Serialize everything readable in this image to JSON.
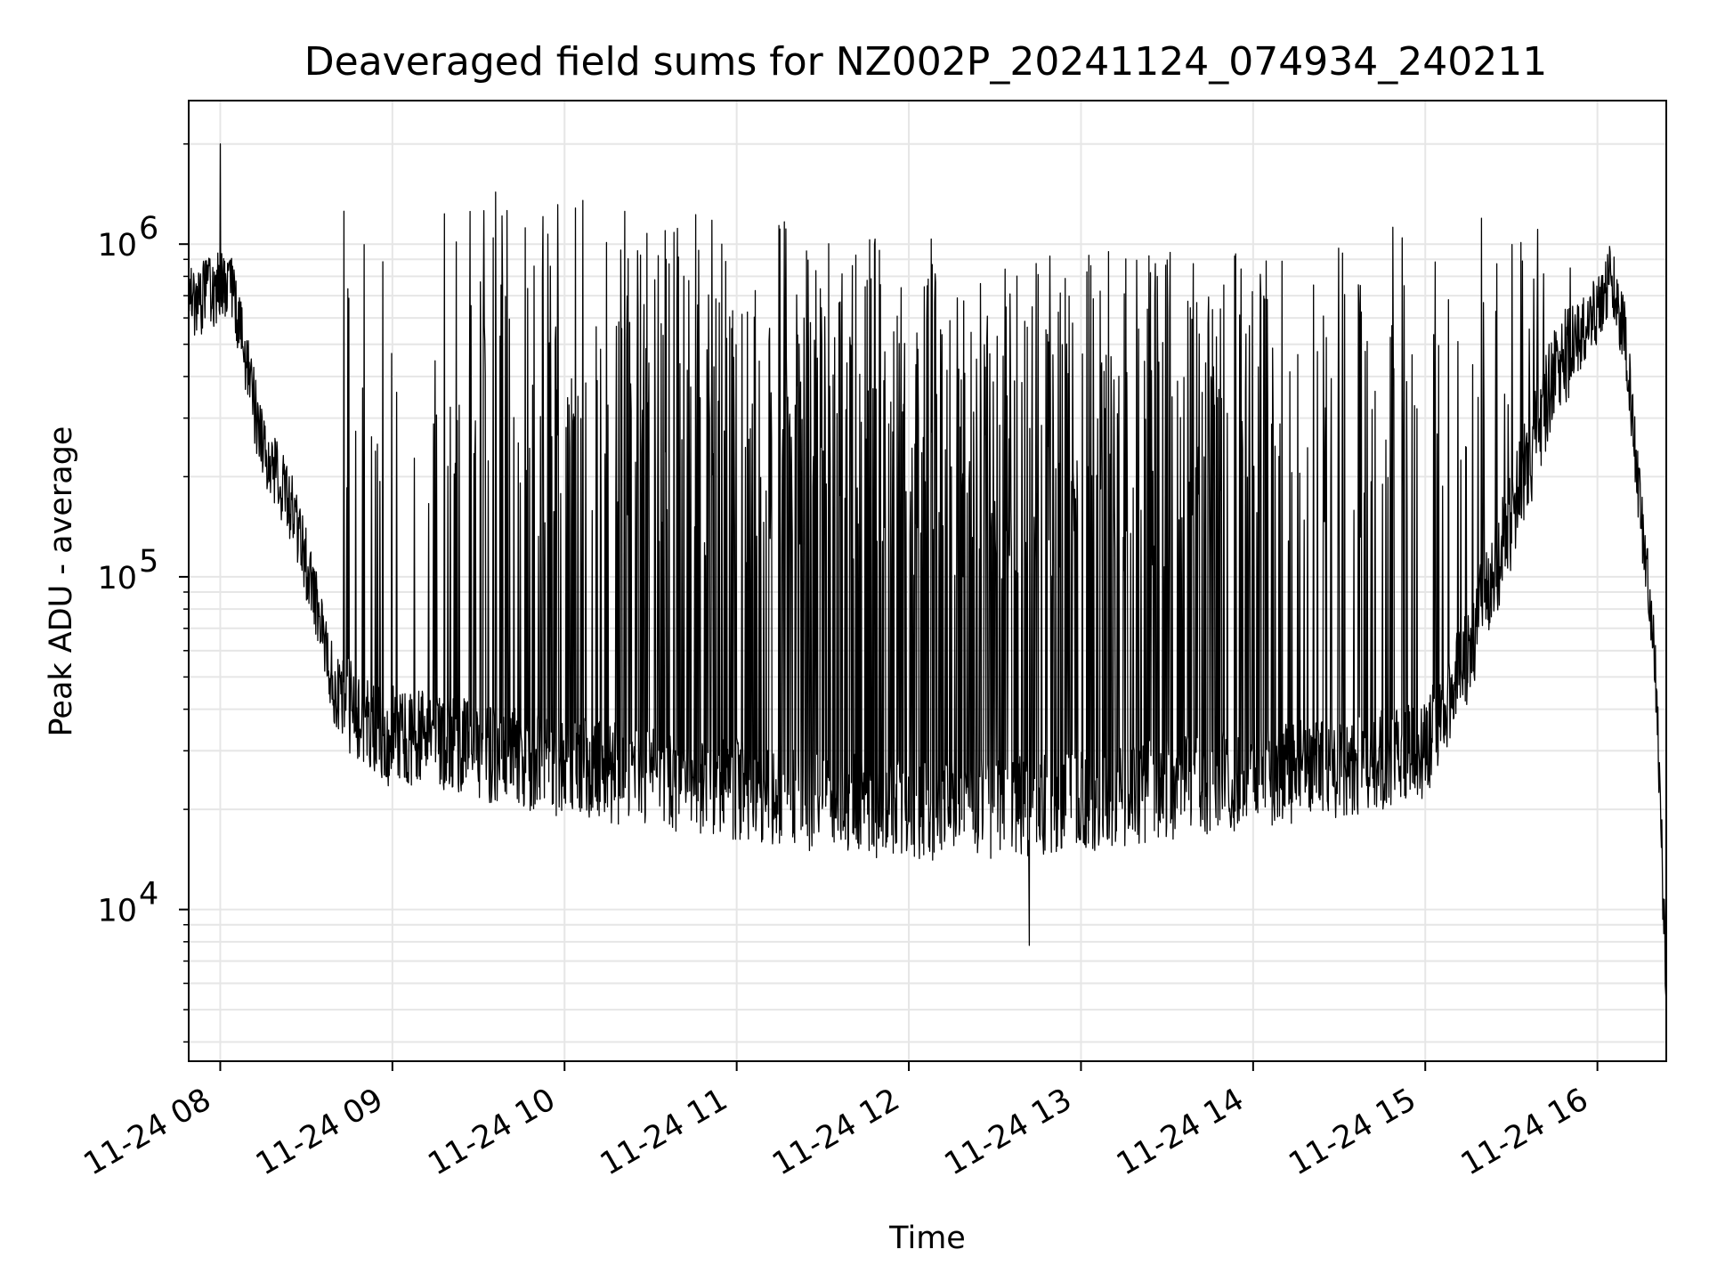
{
  "chart_data": {
    "type": "line",
    "title": "Deaveraged field sums for NZ002P_20241124_074934_240211",
    "xlabel": "Time",
    "ylabel": "Peak ADU - average",
    "yscale": "log",
    "xlim": [
      "2024-11-24 07:49",
      "2024-11-24 16:24"
    ],
    "ylim": [
      3500,
      2700000
    ],
    "grid": true,
    "x_ticks": [
      "2024-11-24 08:00",
      "2024-11-24 09:00",
      "2024-11-24 10:00",
      "2024-11-24 11:00",
      "2024-11-24 12:00",
      "2024-11-24 13:00",
      "2024-11-24 14:00",
      "2024-11-24 15:00",
      "2024-11-24 16:00"
    ],
    "x_tick_labels": [
      "11-24 08",
      "11-24 09",
      "11-24 10",
      "11-24 11",
      "11-24 12",
      "11-24 13",
      "11-24 14",
      "11-24 15",
      "11-24 16"
    ],
    "y_ticks": [
      10000,
      100000,
      1000000
    ],
    "y_tick_bases": [
      "10",
      "10",
      "10"
    ],
    "y_tick_exponents": [
      "4",
      "5",
      "6"
    ],
    "series": [
      {
        "color": "#000000",
        "x": [
          "2024-11-24 07:49",
          "2024-11-24 07:55",
          "2024-11-24 08:00",
          "2024-11-24 08:04",
          "2024-11-24 08:08",
          "2024-11-24 08:12",
          "2024-11-24 08:16",
          "2024-11-24 08:20",
          "2024-11-24 08:25",
          "2024-11-24 08:30",
          "2024-11-24 08:35",
          "2024-11-24 08:40",
          "2024-11-24 08:45",
          "2024-11-24 08:50",
          "2024-11-24 08:55",
          "2024-11-24 09:00",
          "2024-11-24 09:10",
          "2024-11-24 09:20",
          "2024-11-24 09:30",
          "2024-11-24 09:40",
          "2024-11-24 09:50",
          "2024-11-24 10:00",
          "2024-11-24 10:15",
          "2024-11-24 10:30",
          "2024-11-24 10:45",
          "2024-11-24 11:00",
          "2024-11-24 11:15",
          "2024-11-24 11:30",
          "2024-11-24 11:45",
          "2024-11-24 12:00",
          "2024-11-24 12:15",
          "2024-11-24 12:30",
          "2024-11-24 12:45",
          "2024-11-24 13:00",
          "2024-11-24 13:15",
          "2024-11-24 13:30",
          "2024-11-24 13:45",
          "2024-11-24 14:00",
          "2024-11-24 14:15",
          "2024-11-24 14:30",
          "2024-11-24 14:45",
          "2024-11-24 15:00",
          "2024-11-24 15:15",
          "2024-11-24 15:30",
          "2024-11-24 15:45",
          "2024-11-24 16:00",
          "2024-11-24 16:05",
          "2024-11-24 16:10",
          "2024-11-24 16:15",
          "2024-11-24 16:20",
          "2024-11-24 16:24"
        ],
        "y": [
          650000,
          700000,
          750000,
          720000,
          480000,
          320000,
          220000,
          200000,
          160000,
          110000,
          75000,
          45000,
          40000,
          35000,
          34000,
          33000,
          32000,
          31000,
          30000,
          29000,
          28000,
          27000,
          26000,
          25000,
          24000,
          23000,
          22000,
          21000,
          20500,
          20000,
          20000,
          20000,
          20500,
          21000,
          22000,
          23000,
          24000,
          25000,
          26000,
          27000,
          28000,
          30000,
          60000,
          150000,
          400000,
          650000,
          800000,
          500000,
          160000,
          60000,
          6000
        ]
      }
    ],
    "annotations": {
      "peak_near_08": {
        "x": "2024-11-24 08:00",
        "y": 2000000
      },
      "dip_min": {
        "x": "2024-11-24 12:42",
        "y": 7800
      }
    }
  }
}
